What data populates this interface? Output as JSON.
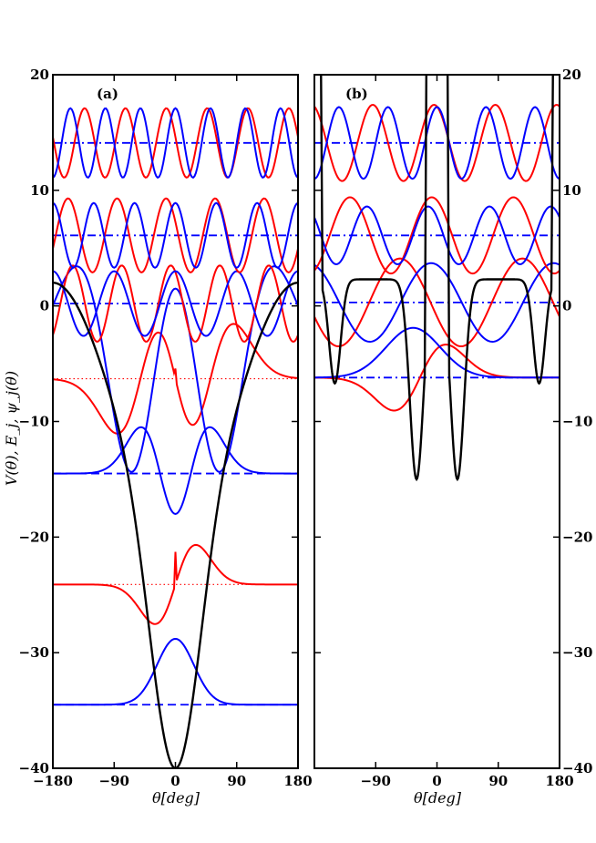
{
  "chart_data": [
    {
      "panel": "a",
      "type": "line",
      "label": "(a)",
      "xlabel": "θ[deg]",
      "ylabel": "V(θ), E_j, ψ_j(θ)",
      "xlim": [
        -180,
        180
      ],
      "ylim": [
        -40,
        20
      ],
      "xticks": [
        -180,
        -90,
        0,
        90,
        180
      ],
      "yticks": [
        -40,
        -30,
        -20,
        -10,
        0,
        10,
        20
      ],
      "xtick_labels": [
        "−180",
        "−90",
        "0",
        "90",
        "180"
      ],
      "ytick_labels": [
        "−40",
        "−30",
        "−20",
        "−10",
        "0",
        "10",
        "20"
      ],
      "ytick_side": "left",
      "grid": false,
      "colors": {
        "potential": "#000000",
        "even": "#0000ff",
        "odd": "#ff0000"
      },
      "potential": {
        "kind": "cosine",
        "offset": -9,
        "amplitude": -11,
        "extra_amplitude": -20,
        "extra_freq": 1
      },
      "energy_levels": [
        {
          "energy": -34.5,
          "color": "#0000ff",
          "style": "dash"
        },
        {
          "energy": -24.1,
          "color": "#ff0000",
          "style": "dot"
        },
        {
          "energy": -14.5,
          "color": "#0000ff",
          "style": "dash"
        },
        {
          "energy": -6.3,
          "color": "#ff0000",
          "style": "dot"
        },
        {
          "energy": 0.2,
          "color": "#0000ff",
          "style": "dashdot"
        },
        {
          "energy": 6.1,
          "color": "#0000ff",
          "style": "dashdot"
        },
        {
          "energy": 14.1,
          "color": "#0000ff",
          "style": "dashdot"
        }
      ],
      "wavefunctions": [
        {
          "energy": -34.5,
          "color": "#0000ff",
          "kind": "gauss",
          "amp": 5.7,
          "width": 27,
          "shift": 0,
          "order": 0
        },
        {
          "energy": -24.1,
          "color": "#ff0000",
          "kind": "gauss",
          "amp": 4.8,
          "width": 30,
          "shift": 0,
          "order": 1
        },
        {
          "energy": -14.5,
          "color": "#0000ff",
          "kind": "gauss",
          "amp": 4.2,
          "width": 32,
          "shift": 0,
          "order": 2
        },
        {
          "energy": -6.3,
          "color": "#ff0000",
          "kind": "gauss",
          "amp": 3.5,
          "width": 42,
          "shift": 0,
          "order": 3
        },
        {
          "energy": -6.3,
          "color": "#0000ff",
          "kind": "gauss",
          "amp": 2.6,
          "width": 60,
          "shift": 0,
          "order": 4
        },
        {
          "energy": 0.2,
          "color": "#ff0000",
          "kind": "periodic",
          "amp": 3.3,
          "freq": 5,
          "phase": 0.6
        },
        {
          "energy": 0.2,
          "color": "#0000ff",
          "kind": "periodic",
          "amp": 2.8,
          "freq": 4,
          "phase": 0
        },
        {
          "energy": 6.1,
          "color": "#ff0000",
          "kind": "periodic",
          "amp": 3.2,
          "freq": 5,
          "phase": 1.2
        },
        {
          "energy": 6.1,
          "color": "#0000ff",
          "kind": "periodic",
          "amp": 2.8,
          "freq": 6,
          "phase": 0
        },
        {
          "energy": 14.1,
          "color": "#ff0000",
          "kind": "periodic",
          "amp": 3.0,
          "freq": 6,
          "phase": 1.4
        },
        {
          "energy": 14.1,
          "color": "#0000ff",
          "kind": "periodic",
          "amp": 3.0,
          "freq": 7,
          "phase": 0
        }
      ]
    },
    {
      "panel": "b",
      "type": "line",
      "label": "(b)",
      "xlabel": "θ[deg]",
      "xlim": [
        -180,
        180
      ],
      "ylim": [
        -40,
        20
      ],
      "xticks": [
        -90,
        0,
        90,
        180
      ],
      "yticks": [
        -40,
        -30,
        -20,
        -10,
        0,
        10,
        20
      ],
      "xtick_labels": [
        "−90",
        "0",
        "90",
        "180"
      ],
      "ytick_labels": [
        "−40",
        "−30",
        "−20",
        "−10",
        "0",
        "10",
        "20"
      ],
      "ytick_side": "right",
      "grid": false,
      "colors": {
        "potential": "#000000",
        "even": "#0000ff",
        "odd": "#ff0000"
      },
      "potential": {
        "kind": "double-well",
        "wells_at": [
          -30,
          30,
          -150,
          150
        ],
        "well_depth": -15,
        "barrier_top": 2.3
      },
      "energy_levels": [
        {
          "energy": -6.2,
          "color": "#0000ff",
          "style": "dashdot"
        },
        {
          "energy": 0.3,
          "color": "#0000ff",
          "style": "dashdot"
        },
        {
          "energy": 6.1,
          "color": "#0000ff",
          "style": "dashdot"
        },
        {
          "energy": 14.1,
          "color": "#0000ff",
          "style": "dashdot"
        }
      ],
      "wavefunctions": [
        {
          "energy": -6.2,
          "color": "#ff0000",
          "kind": "gauss",
          "amp": 4.0,
          "width": 38,
          "shift": -25,
          "order": 1
        },
        {
          "energy": -6.2,
          "color": "#0000ff",
          "kind": "gauss",
          "amp": 4.3,
          "width": 40,
          "shift": -35,
          "order": 0
        },
        {
          "energy": 0.3,
          "color": "#ff0000",
          "kind": "periodic",
          "amp": 3.8,
          "freq": 2,
          "phase": 1.9
        },
        {
          "energy": 0.3,
          "color": "#0000ff",
          "kind": "periodic",
          "amp": 3.4,
          "freq": 2,
          "phase": 0.3
        },
        {
          "energy": 6.1,
          "color": "#ff0000",
          "kind": "periodic",
          "amp": 3.3,
          "freq": 3,
          "phase": 0.4
        },
        {
          "energy": 6.1,
          "color": "#0000ff",
          "kind": "periodic",
          "amp": 2.5,
          "freq": 4,
          "phase": 0.9
        },
        {
          "energy": 14.1,
          "color": "#ff0000",
          "kind": "periodic",
          "amp": 3.3,
          "freq": 4,
          "phase": 0.3
        },
        {
          "energy": 14.1,
          "color": "#0000ff",
          "kind": "periodic",
          "amp": 3.1,
          "freq": 5,
          "phase": 0.0
        }
      ]
    }
  ]
}
